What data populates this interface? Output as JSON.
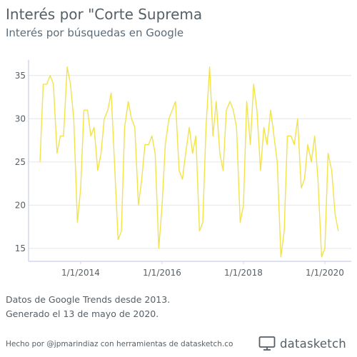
{
  "header": {
    "title": "Interés por \"Corte Suprema",
    "subtitle": "Interés por búsquedas en Google"
  },
  "footer": {
    "caption_line1": "Datos de Google Trends desde 2013.",
    "caption_line2": "Generado el 13 de mayo de 2020.",
    "credit": "Hecho por @jpmarindiaz con herramientas de datasketch.co",
    "brand": "datasketch"
  },
  "colors": {
    "line": "#f2e34a",
    "axis": "#d0d6ee",
    "grid": "#e6e6e6",
    "text": "#555f66"
  },
  "chart_data": {
    "type": "line",
    "x_unit": "year",
    "ylim": [
      13.5,
      36.8
    ],
    "xlim": [
      2012.72,
      2020.65
    ],
    "yticks": [
      15,
      20,
      25,
      30,
      35
    ],
    "xticks": [
      {
        "value": 2014.0,
        "label": "1/1/2014"
      },
      {
        "value": 2016.0,
        "label": "1/1/2016"
      },
      {
        "value": 2018.0,
        "label": "1/1/2018"
      },
      {
        "value": 2020.0,
        "label": "1/1/2020"
      }
    ],
    "grid": "horizontal",
    "legend": "none",
    "x": [
      2013.0,
      2013.08,
      2013.17,
      2013.25,
      2013.33,
      2013.42,
      2013.5,
      2013.58,
      2013.67,
      2013.75,
      2013.83,
      2013.92,
      2014.0,
      2014.08,
      2014.17,
      2014.25,
      2014.33,
      2014.42,
      2014.5,
      2014.58,
      2014.67,
      2014.75,
      2014.83,
      2014.92,
      2015.0,
      2015.08,
      2015.17,
      2015.25,
      2015.33,
      2015.42,
      2015.5,
      2015.58,
      2015.67,
      2015.75,
      2015.83,
      2015.92,
      2016.0,
      2016.08,
      2016.17,
      2016.25,
      2016.33,
      2016.42,
      2016.5,
      2016.58,
      2016.67,
      2016.75,
      2016.83,
      2016.92,
      2017.0,
      2017.08,
      2017.17,
      2017.25,
      2017.33,
      2017.42,
      2017.5,
      2017.58,
      2017.67,
      2017.75,
      2017.83,
      2017.92,
      2018.0,
      2018.08,
      2018.17,
      2018.25,
      2018.33,
      2018.42,
      2018.5,
      2018.58,
      2018.67,
      2018.75,
      2018.83,
      2018.92,
      2019.0,
      2019.08,
      2019.17,
      2019.25,
      2019.33,
      2019.42,
      2019.5,
      2019.58,
      2019.67,
      2019.75,
      2019.83,
      2019.92,
      2020.0,
      2020.08,
      2020.17,
      2020.25,
      2020.33
    ],
    "series": [
      {
        "values": [
          25,
          34,
          34,
          35,
          34,
          26,
          28,
          28,
          36,
          34,
          30,
          18,
          22,
          31,
          31,
          28,
          29,
          24,
          26,
          30,
          31,
          33,
          25,
          16,
          17,
          29,
          32,
          30,
          29,
          20,
          23,
          27,
          27,
          28,
          26,
          15,
          20,
          27,
          30,
          31,
          32,
          24,
          23,
          26,
          29,
          26,
          28,
          17,
          18,
          29,
          36,
          28,
          32,
          26,
          24,
          31,
          32,
          31,
          29,
          18,
          20,
          32,
          27,
          34,
          31,
          24,
          29,
          27,
          31,
          28,
          25,
          14,
          17,
          28,
          28,
          27,
          30,
          22,
          23,
          27,
          25,
          28,
          23,
          14,
          15,
          26,
          24,
          19,
          17
        ]
      }
    ]
  }
}
